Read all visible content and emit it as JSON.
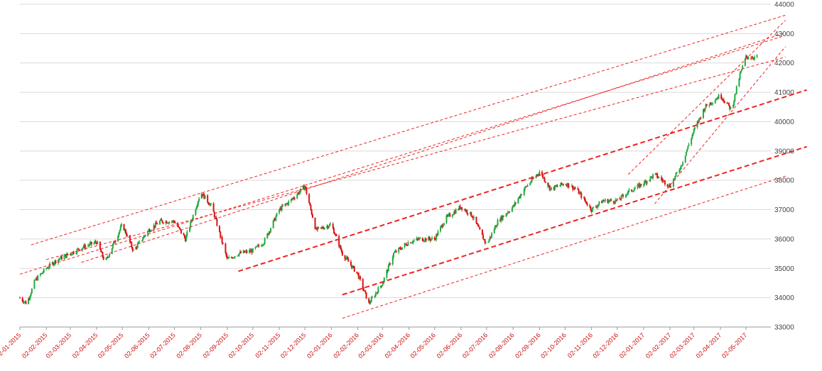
{
  "chart_data": {
    "type": "candlestick",
    "title": "",
    "xlabel": "",
    "ylabel": "",
    "ylim": [
      33000,
      44000
    ],
    "y_ticks": [
      33000,
      34000,
      35000,
      36000,
      37000,
      38000,
      39000,
      40000,
      41000,
      42000,
      43000,
      44000
    ],
    "x_tick_labels": [
      "02-01-2015",
      "02-02-2015",
      "02-03-2015",
      "02-04-2015",
      "02-05-2015",
      "02-06-2015",
      "02-07-2015",
      "02-08-2015",
      "02-09-2015",
      "02-10-2015",
      "02-11-2015",
      "02-12-2015",
      "02-01-2016",
      "02-02-2016",
      "02-03-2016",
      "02-04-2016",
      "02-05-2016",
      "02-06-2016",
      "02-07-2016",
      "02-08-2016",
      "02-09-2016",
      "02-10-2016",
      "02-11-2016",
      "02-12-2016",
      "02-01-2017",
      "02-02-2017",
      "02-03-2017",
      "02-04-2017",
      "02-05-2017"
    ],
    "grid": "horizontal",
    "axis_position": "right",
    "colors": {
      "up": "#22aa44",
      "down": "#dd1111",
      "trendline": "#ee2222",
      "grid": "#d9d9d9",
      "x_label": "#cc1111"
    },
    "price_path_monthly": [
      [
        "02-01-2015",
        34000
      ],
      [
        "10-01-2015",
        33800
      ],
      [
        "20-01-2015",
        34600
      ],
      [
        "02-02-2015",
        35000
      ],
      [
        "15-02-2015",
        35300
      ],
      [
        "02-03-2015",
        35500
      ],
      [
        "15-03-2015",
        35700
      ],
      [
        "02-04-2015",
        35900
      ],
      [
        "12-04-2015",
        35200
      ],
      [
        "02-05-2015",
        36500
      ],
      [
        "15-05-2015",
        35600
      ],
      [
        "02-06-2015",
        36300
      ],
      [
        "15-06-2015",
        36600
      ],
      [
        "02-07-2015",
        36600
      ],
      [
        "15-07-2015",
        36000
      ],
      [
        "02-08-2015",
        37600
      ],
      [
        "15-08-2015",
        37100
      ],
      [
        "02-09-2015",
        35300
      ],
      [
        "15-09-2015",
        35500
      ],
      [
        "02-10-2015",
        35600
      ],
      [
        "15-10-2015",
        35900
      ],
      [
        "02-11-2015",
        37000
      ],
      [
        "15-11-2015",
        37300
      ],
      [
        "02-12-2015",
        37800
      ],
      [
        "15-12-2015",
        36300
      ],
      [
        "02-01-2016",
        36500
      ],
      [
        "15-01-2016",
        35500
      ],
      [
        "02-02-2016",
        34800
      ],
      [
        "15-02-2016",
        33800
      ],
      [
        "02-03-2016",
        34500
      ],
      [
        "15-03-2016",
        35500
      ],
      [
        "02-04-2016",
        35900
      ],
      [
        "15-04-2016",
        36000
      ],
      [
        "02-05-2016",
        36000
      ],
      [
        "15-05-2016",
        36700
      ],
      [
        "02-06-2016",
        37100
      ],
      [
        "15-06-2016",
        36800
      ],
      [
        "02-07-2016",
        35800
      ],
      [
        "15-07-2016",
        36600
      ],
      [
        "02-08-2016",
        37100
      ],
      [
        "15-08-2016",
        37700
      ],
      [
        "02-09-2016",
        38300
      ],
      [
        "15-09-2016",
        37700
      ],
      [
        "02-10-2016",
        37900
      ],
      [
        "15-10-2016",
        37700
      ],
      [
        "02-11-2016",
        37000
      ],
      [
        "15-11-2016",
        37300
      ],
      [
        "02-12-2016",
        37300
      ],
      [
        "15-12-2016",
        37600
      ],
      [
        "02-01-2017",
        37900
      ],
      [
        "15-01-2017",
        38200
      ],
      [
        "02-02-2017",
        37800
      ],
      [
        "15-02-2017",
        38500
      ],
      [
        "02-03-2017",
        39700
      ],
      [
        "15-03-2017",
        40500
      ],
      [
        "02-04-2017",
        40900
      ],
      [
        "15-04-2017",
        40400
      ],
      [
        "25-04-2017",
        41600
      ],
      [
        "02-05-2017",
        42200
      ],
      [
        "15-05-2017",
        42200
      ]
    ],
    "trendlines": [
      {
        "style": "thin",
        "from": [
          "02-01-2015",
          34800
        ],
        "to": [
          "15-05-2017",
          42700
        ]
      },
      {
        "style": "thin",
        "from": [
          "15-01-2015",
          35800
        ],
        "to": [
          "15-05-2017",
          43400
        ]
      },
      {
        "style": "thin",
        "from": [
          "15-03-2015",
          35200
        ],
        "to": [
          "15-05-2017",
          42800
        ]
      },
      {
        "style": "thin",
        "from": [
          "02-02-2015",
          35300
        ],
        "to": [
          "15-05-2017",
          42000
        ]
      },
      {
        "style": "thick",
        "from": [
          "15-09-2015",
          34900
        ],
        "to": [
          "15-05-2017",
          40900
        ]
      },
      {
        "style": "thick",
        "from": [
          "15-01-2016",
          34100
        ],
        "to": [
          "15-05-2017",
          39000
        ]
      },
      {
        "style": "thin",
        "from": [
          "15-01-2016",
          33300
        ],
        "to": [
          "15-05-2017",
          38000
        ]
      },
      {
        "style": "thin",
        "from": [
          "15-01-2017",
          37200
        ],
        "to": [
          "15-05-2017",
          42400
        ]
      },
      {
        "style": "thin",
        "from": [
          "15-12-2016",
          38200
        ],
        "to": [
          "15-05-2017",
          43300
        ]
      }
    ]
  }
}
